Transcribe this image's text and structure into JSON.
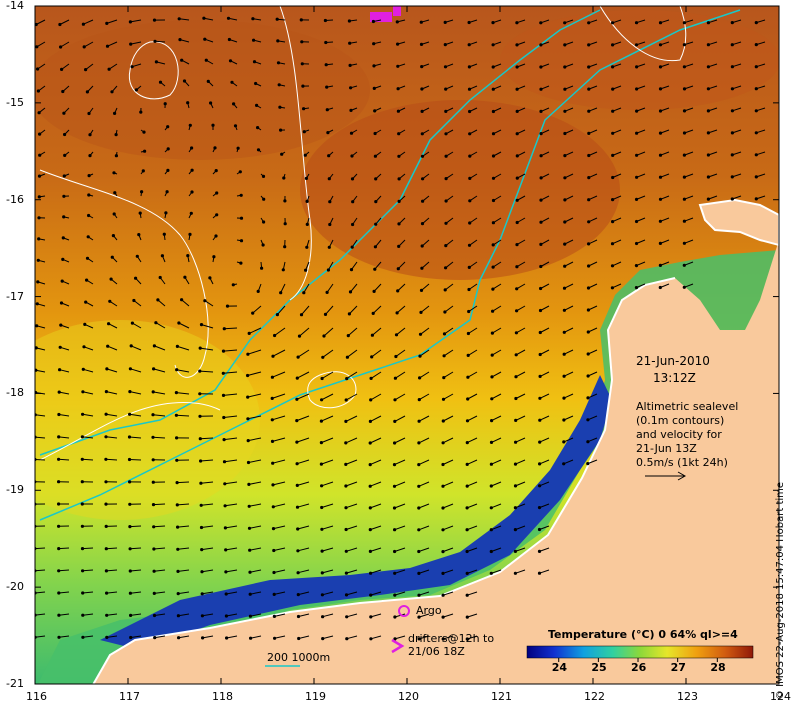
{
  "map": {
    "x_ticks": [
      "116",
      "117",
      "118",
      "119",
      "120",
      "121",
      "122",
      "123",
      "124"
    ],
    "y_ticks": [
      "-14",
      "-15",
      "-16",
      "-17",
      "-18",
      "-19",
      "-20",
      "-21"
    ],
    "x_range": [
      116,
      124
    ],
    "y_range": [
      -21,
      -14
    ]
  },
  "annotations": {
    "date": "21-Jun-2010",
    "time": "13:12Z",
    "info_lines": [
      "Altimetric sealevel",
      "(0.1m contours)",
      "and velocity for",
      "21-Jun 13Z",
      "0.5m/s (1kt 24h)"
    ],
    "argo_label": "Argo",
    "drifters_line1": "drifters@12h to",
    "drifters_line2": "21/06 18Z",
    "depth_label": "200  1000m",
    "credit": "© IMOS 22-Aug-2018 15:47:04 Hobart time"
  },
  "legend": {
    "title": "Temperature (°C) 0 64% ql>=4",
    "ticks": [
      "24",
      "25",
      "26",
      "27",
      "28"
    ],
    "range": [
      23.2,
      28.9
    ]
  },
  "colors": {
    "land": "#f9c99c",
    "warm": "#c2601a",
    "mid": "#eaa20e",
    "cool": "#c6e62c",
    "cold": "#1a3fb0",
    "contour": "#ffffff",
    "bathy": "#19c8c8",
    "argo": "#e020e0"
  }
}
